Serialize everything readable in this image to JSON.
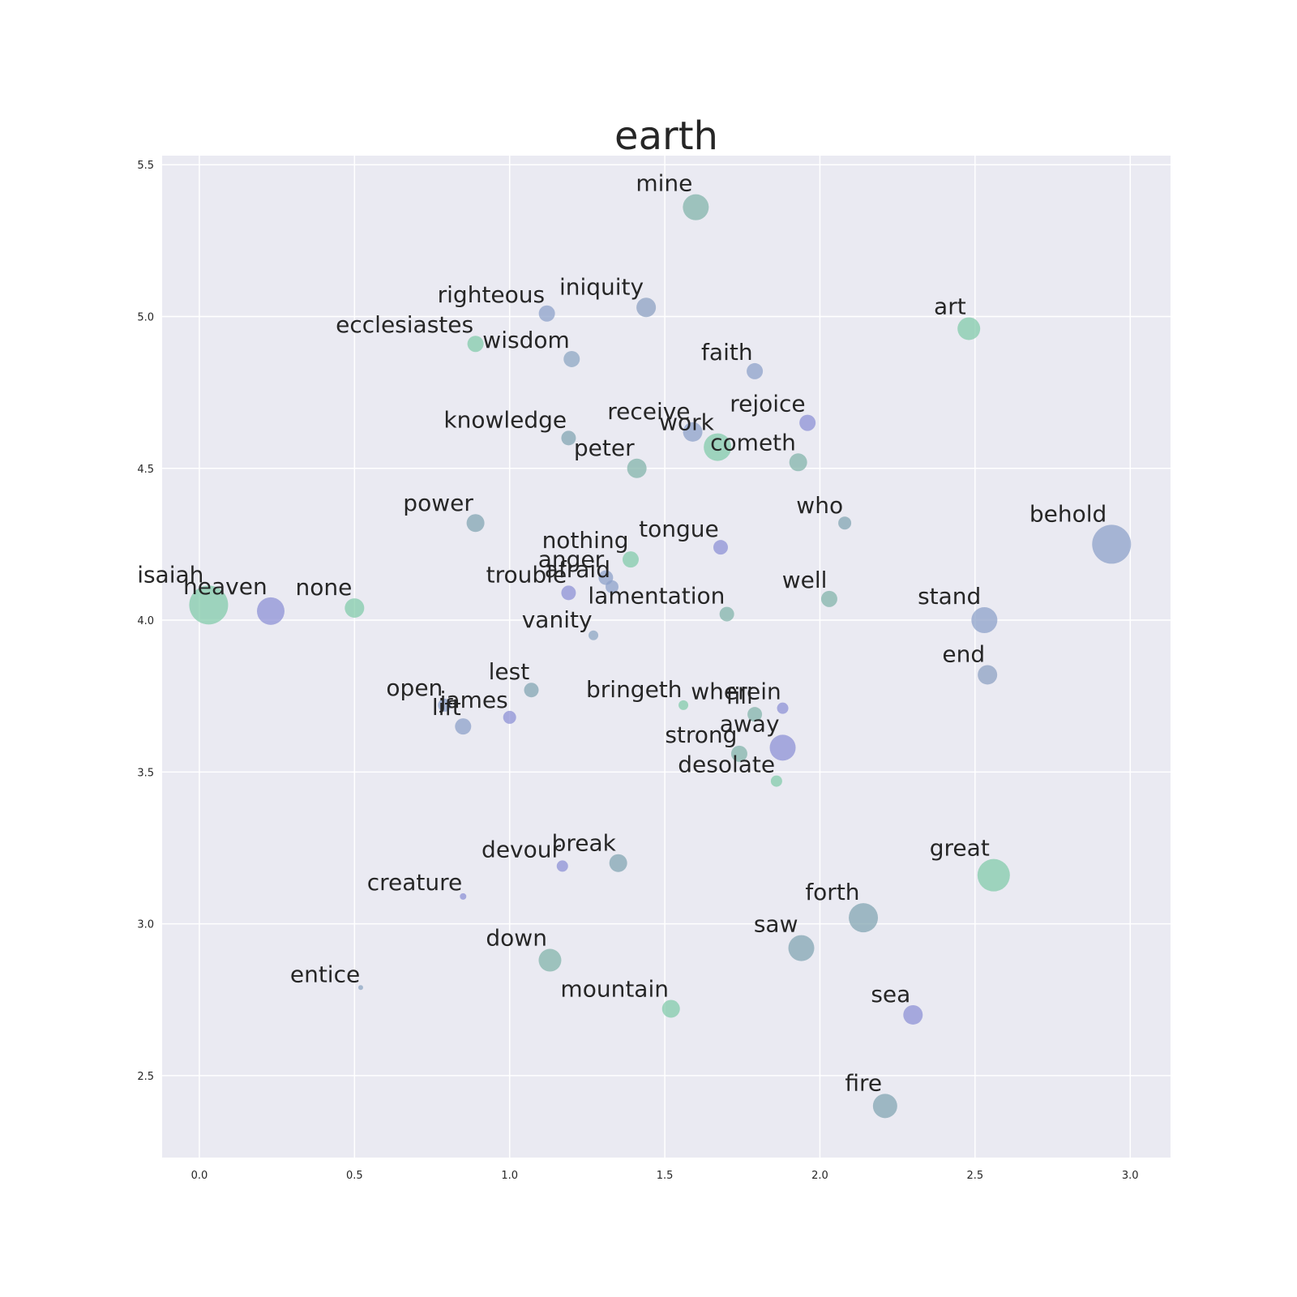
{
  "chart_data": {
    "type": "scatter",
    "title": "earth",
    "xlabel": "",
    "ylabel": "",
    "xlim": [
      -0.12,
      3.13
    ],
    "ylim": [
      2.23,
      5.53
    ],
    "xticks": [
      "0.0",
      "0.5",
      "1.0",
      "1.5",
      "2.0",
      "2.5",
      "3.0"
    ],
    "yticks": [
      "2.5",
      "3.0",
      "3.5",
      "4.0",
      "4.5",
      "5.0",
      "5.5"
    ],
    "grid": true,
    "colors": {
      "background": "#eaeaf2",
      "grid": "#ffffff",
      "teal": "#7fbfa8",
      "slate": "#8a9fc0",
      "violet": "#8b8fd4",
      "steel": "#7fa3b0"
    },
    "points": [
      {
        "label": "mine",
        "x": 1.6,
        "y": 5.36,
        "size": 16,
        "color": "#7fb3a8"
      },
      {
        "label": "righteous",
        "x": 1.12,
        "y": 5.01,
        "size": 10,
        "color": "#8a9fc8"
      },
      {
        "label": "iniquity",
        "x": 1.44,
        "y": 5.03,
        "size": 12,
        "color": "#8a9fc0"
      },
      {
        "label": "art",
        "x": 2.48,
        "y": 4.96,
        "size": 14,
        "color": "#7fcba8"
      },
      {
        "label": "ecclesiastes",
        "x": 0.89,
        "y": 4.91,
        "size": 10,
        "color": "#7fcba8"
      },
      {
        "label": "wisdom",
        "x": 1.2,
        "y": 4.86,
        "size": 10,
        "color": "#8aa5c0"
      },
      {
        "label": "faith",
        "x": 1.79,
        "y": 4.82,
        "size": 10,
        "color": "#8a9fc8"
      },
      {
        "label": "rejoice",
        "x": 1.96,
        "y": 4.65,
        "size": 10,
        "color": "#8b8fd4"
      },
      {
        "label": "knowledge",
        "x": 1.19,
        "y": 4.6,
        "size": 9,
        "color": "#7fa3b0"
      },
      {
        "label": "receive",
        "x": 1.59,
        "y": 4.62,
        "size": 12,
        "color": "#8a9fc8"
      },
      {
        "label": "work",
        "x": 1.67,
        "y": 4.57,
        "size": 17,
        "color": "#7fcba8"
      },
      {
        "label": "cometh",
        "x": 1.93,
        "y": 4.52,
        "size": 11,
        "color": "#7fb3a8"
      },
      {
        "label": "peter",
        "x": 1.41,
        "y": 4.5,
        "size": 12,
        "color": "#7fb3a8"
      },
      {
        "label": "power",
        "x": 0.89,
        "y": 4.32,
        "size": 11,
        "color": "#7fa3b0"
      },
      {
        "label": "who",
        "x": 2.08,
        "y": 4.32,
        "size": 8,
        "color": "#7fa3b0"
      },
      {
        "label": "tongue",
        "x": 1.68,
        "y": 4.24,
        "size": 9,
        "color": "#8b8fd4"
      },
      {
        "label": "behold",
        "x": 2.94,
        "y": 4.25,
        "size": 24,
        "color": "#8a9fc8"
      },
      {
        "label": "nothing",
        "x": 1.39,
        "y": 4.2,
        "size": 10,
        "color": "#7fcba8"
      },
      {
        "label": "anger",
        "x": 1.31,
        "y": 4.14,
        "size": 9,
        "color": "#8a9fc8"
      },
      {
        "label": "afraid",
        "x": 1.33,
        "y": 4.11,
        "size": 8,
        "color": "#8a9fc8"
      },
      {
        "label": "trouble",
        "x": 1.19,
        "y": 4.09,
        "size": 9,
        "color": "#8b8fd4"
      },
      {
        "label": "well",
        "x": 2.03,
        "y": 4.07,
        "size": 10,
        "color": "#7fb3a8"
      },
      {
        "label": "isaiah",
        "x": 0.03,
        "y": 4.05,
        "size": 24,
        "color": "#7fcba8"
      },
      {
        "label": "heaven",
        "x": 0.23,
        "y": 4.03,
        "size": 17,
        "color": "#8b8fd4"
      },
      {
        "label": "none",
        "x": 0.5,
        "y": 4.04,
        "size": 12,
        "color": "#7fcba8"
      },
      {
        "label": "lamentation",
        "x": 1.7,
        "y": 4.02,
        "size": 9,
        "color": "#7fb3a8"
      },
      {
        "label": "stand",
        "x": 2.53,
        "y": 4.0,
        "size": 16,
        "color": "#8a9fc8"
      },
      {
        "label": "vanity",
        "x": 1.27,
        "y": 3.95,
        "size": 6,
        "color": "#8aa5c0"
      },
      {
        "label": "end",
        "x": 2.54,
        "y": 3.82,
        "size": 12,
        "color": "#8a9fc0"
      },
      {
        "label": "lest",
        "x": 1.07,
        "y": 3.77,
        "size": 9,
        "color": "#7fa3b0"
      },
      {
        "label": "open",
        "x": 0.79,
        "y": 3.72,
        "size": 8,
        "color": "#8a9fc8"
      },
      {
        "label": "james",
        "x": 1.0,
        "y": 3.68,
        "size": 8,
        "color": "#8b8fd4"
      },
      {
        "label": "lift",
        "x": 0.85,
        "y": 3.65,
        "size": 10,
        "color": "#8a9fc8"
      },
      {
        "label": "bringeth",
        "x": 1.56,
        "y": 3.72,
        "size": 6,
        "color": "#7fcba8"
      },
      {
        "label": "wherein",
        "x": 1.88,
        "y": 3.71,
        "size": 7,
        "color": "#8b8fd4"
      },
      {
        "label": "fill",
        "x": 1.79,
        "y": 3.69,
        "size": 9,
        "color": "#7fb3a8"
      },
      {
        "label": "away",
        "x": 1.88,
        "y": 3.58,
        "size": 16,
        "color": "#8b8fd4"
      },
      {
        "label": "strong",
        "x": 1.74,
        "y": 3.56,
        "size": 10,
        "color": "#7fb3a8"
      },
      {
        "label": "desolate",
        "x": 1.86,
        "y": 3.47,
        "size": 7,
        "color": "#7fcba8"
      },
      {
        "label": "devour",
        "x": 1.17,
        "y": 3.19,
        "size": 7,
        "color": "#8b8fd4"
      },
      {
        "label": "break",
        "x": 1.35,
        "y": 3.2,
        "size": 11,
        "color": "#7fa3b0"
      },
      {
        "label": "great",
        "x": 2.56,
        "y": 3.16,
        "size": 20,
        "color": "#7fcba8"
      },
      {
        "label": "creature",
        "x": 0.85,
        "y": 3.09,
        "size": 4,
        "color": "#8b8fd4"
      },
      {
        "label": "forth",
        "x": 2.14,
        "y": 3.02,
        "size": 18,
        "color": "#7fa3b0"
      },
      {
        "label": "saw",
        "x": 1.94,
        "y": 2.92,
        "size": 16,
        "color": "#7fa3b0"
      },
      {
        "label": "down",
        "x": 1.13,
        "y": 2.88,
        "size": 14,
        "color": "#7fb3a8"
      },
      {
        "label": "entice",
        "x": 0.52,
        "y": 2.79,
        "size": 3,
        "color": "#8aa5c0"
      },
      {
        "label": "mountain",
        "x": 1.52,
        "y": 2.72,
        "size": 11,
        "color": "#7fcba8"
      },
      {
        "label": "sea",
        "x": 2.3,
        "y": 2.7,
        "size": 12,
        "color": "#8b8fd4"
      },
      {
        "label": "fire",
        "x": 2.21,
        "y": 2.4,
        "size": 15,
        "color": "#7fa3b0"
      }
    ]
  }
}
